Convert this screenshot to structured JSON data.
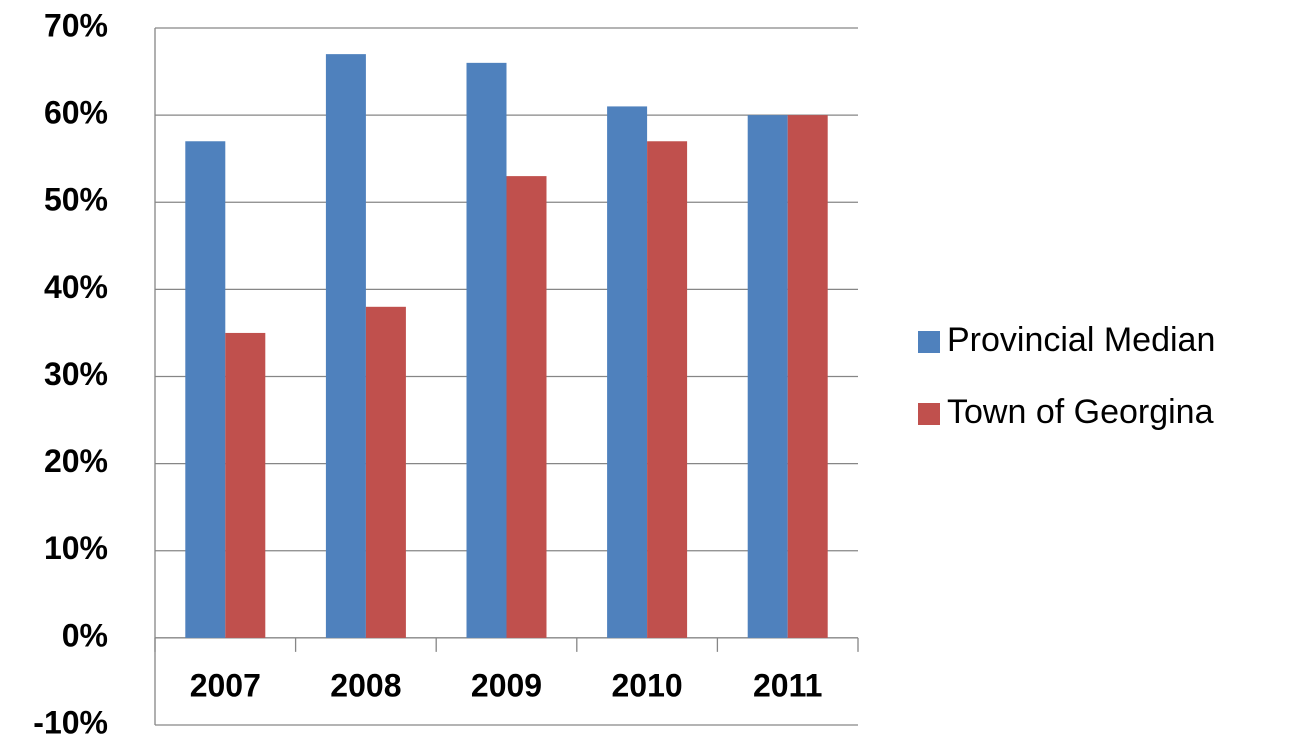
{
  "chart_data": {
    "type": "bar",
    "categories": [
      "2007",
      "2008",
      "2009",
      "2010",
      "2011"
    ],
    "series": [
      {
        "name": "Provincial Median",
        "color": "#4f81bd",
        "values": [
          57,
          67,
          66,
          61,
          60
        ]
      },
      {
        "name": "Town of Georgina",
        "color": "#c0504d",
        "values": [
          35,
          38,
          53,
          57,
          60
        ]
      }
    ],
    "ylim": [
      -10,
      70
    ],
    "yticks": [
      {
        "value": -10,
        "label": "-10%"
      },
      {
        "value": 0,
        "label": "0%"
      },
      {
        "value": 10,
        "label": "10%"
      },
      {
        "value": 20,
        "label": "20%"
      },
      {
        "value": 30,
        "label": "30%"
      },
      {
        "value": 40,
        "label": "40%"
      },
      {
        "value": 50,
        "label": "50%"
      },
      {
        "value": 60,
        "label": "60%"
      },
      {
        "value": 70,
        "label": "70%"
      }
    ],
    "grid": true,
    "legend": "right"
  }
}
